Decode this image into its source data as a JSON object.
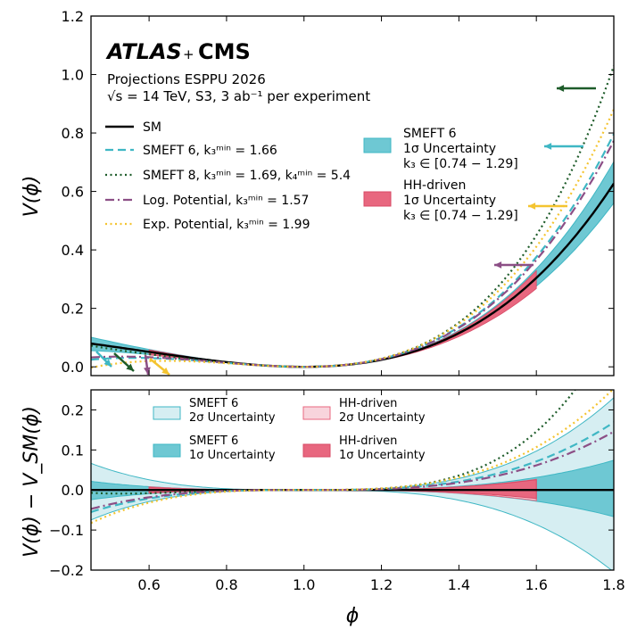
{
  "header": {
    "logo_atlas": "ATLAS",
    "logo_plus": "+",
    "logo_cms": "CMS",
    "line1": "Projections ESPPU 2026",
    "line2": "√s = 14 TeV, S3, 3 ab⁻¹ per experiment"
  },
  "colors": {
    "sm": "#000000",
    "smeft6": "#3fb7c4",
    "smeft8": "#1e5c2a",
    "log": "#8c4f86",
    "exp": "#f4c430",
    "band_smeft6_1s": "#6ec8d3",
    "band_smeft6_2s": "#d6eef2",
    "band_hh_1s": "#e8677f",
    "band_hh_2s": "#f8d4dc"
  },
  "chart_data": [
    {
      "type": "line",
      "panel": "top",
      "xlabel": "",
      "ylabel": "V(ϕ)",
      "xlim": [
        0.45,
        1.8
      ],
      "ylim": [
        -0.03,
        1.2
      ],
      "yticks": [
        "0.0",
        "0.2",
        "0.4",
        "0.6",
        "0.8",
        "1.0",
        "1.2"
      ],
      "xticks_values": [
        0.6,
        0.8,
        1.0,
        1.2,
        1.4,
        1.6,
        1.8
      ],
      "series": [
        {
          "key": "sm",
          "name": "SM",
          "k3": 1.0,
          "style": "solid"
        },
        {
          "key": "smeft6",
          "name": "SMEFT 6, k₃ᵐⁱⁿ = 1.66",
          "k3": 1.66,
          "style": "dashed"
        },
        {
          "key": "smeft8",
          "name": "SMEFT 8, k₃ᵐⁱⁿ = 1.69, k₄ᵐⁱⁿ = 5.4",
          "k3": 1.69,
          "k4": 5.4,
          "style": "dotted"
        },
        {
          "key": "log",
          "name": "Log. Potential, k₃ᵐⁱⁿ = 1.57",
          "k3": 1.57,
          "style": "dashdot"
        },
        {
          "key": "exp",
          "name": "Exp. Potential, k₃ᵐⁱⁿ = 1.99",
          "k3": 1.99,
          "style": "dotted"
        }
      ],
      "bands": [
        {
          "key": "smeft6_1s",
          "label_lines": [
            "SMEFT 6",
            "1σ Uncertainty",
            "k₃ ∈ [0.74 − 1.29]"
          ],
          "k3_range": [
            0.74,
            1.29
          ]
        },
        {
          "key": "hh_1s",
          "label_lines": [
            "HH-driven",
            "1σ Uncertainty",
            "k₃ ∈ [0.74 − 1.29]"
          ],
          "k3_range": [
            0.74,
            1.29
          ]
        }
      ]
    },
    {
      "type": "line",
      "panel": "bottom",
      "xlabel": "ϕ",
      "ylabel": "V(ϕ) − V_SM(ϕ)",
      "xlim": [
        0.45,
        1.8
      ],
      "ylim": [
        -0.2,
        0.25
      ],
      "yticks": [
        "−0.2",
        "−0.1",
        "0.0",
        "0.1",
        "0.2"
      ],
      "xticks": [
        "0.6",
        "0.8",
        "1.0",
        "1.2",
        "1.4",
        "1.6",
        "1.8"
      ],
      "bands": [
        {
          "key": "smeft6_2s",
          "label_lines": [
            "SMEFT 6",
            "2σ Uncertainty"
          ]
        },
        {
          "key": "smeft6_1s",
          "label_lines": [
            "SMEFT 6",
            "1σ Uncertainty"
          ]
        },
        {
          "key": "hh_2s",
          "label_lines": [
            "HH-driven",
            "2σ Uncertainty"
          ]
        },
        {
          "key": "hh_1s",
          "label_lines": [
            "HH-driven",
            "1σ Uncertainty"
          ]
        }
      ]
    }
  ]
}
